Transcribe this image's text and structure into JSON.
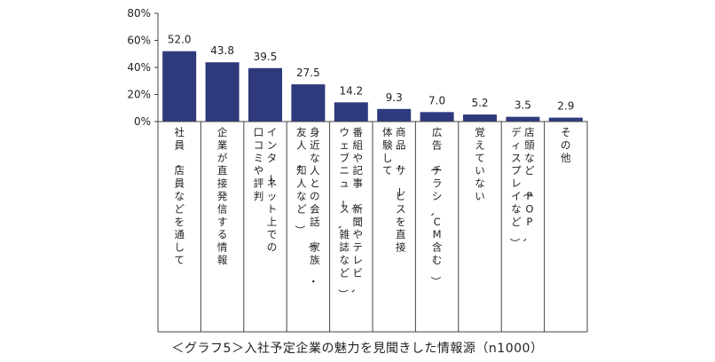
{
  "caption": "＜グラフ5＞入社予定企業の魅力を見聞きした情報源（n1000）",
  "colors": {
    "bar": "#2e3a7c",
    "axis": "#444444",
    "text": "#222222"
  },
  "chart_data": {
    "type": "bar",
    "title": "＜グラフ5＞入社予定企業の魅力を見聞きした情報源（n1000）",
    "ylim": [
      0,
      80
    ],
    "yticks": [
      0,
      20,
      40,
      60,
      80
    ],
    "ytick_labels": [
      "0%",
      "20%",
      "40%",
      "60%",
      "80%"
    ],
    "grid": false,
    "categories": [
      "社員・店員などを通して",
      "企業が直接発信する情報",
      "インターネット上での口コミや評判",
      "身近な人との会話（家族・友人・知人など）",
      "番組や記事（新聞やテレビ、ウェブニュース、雑誌など）",
      "商品・サービスを直接体験して",
      "広告（チラシ、CM含む）",
      "覚えていない",
      "店頭など（POP、ディスプレイなど）",
      "その他"
    ],
    "category_columns": [
      [
        "社員・店員などを通して"
      ],
      [
        "企業が直接発信する情報"
      ],
      [
        "インターネット上での",
        "口コミや評判"
      ],
      [
        "身近な人との会話（家族・",
        "友人・知人など）"
      ],
      [
        "番組や記事（新聞やテレビ、",
        "ウェブニュース、雑誌など）"
      ],
      [
        "商品・サービスを直接",
        "体験して"
      ],
      [
        "広告（チラシ、CM含む）"
      ],
      [
        "覚えていない"
      ],
      [
        "店頭など（POP、",
        "ディスプレイなど）"
      ],
      [
        "その他"
      ]
    ],
    "values": [
      52.0,
      43.8,
      39.5,
      27.5,
      14.2,
      9.3,
      7.0,
      5.2,
      3.5,
      2.9
    ],
    "value_labels": [
      "52.0",
      "43.8",
      "39.5",
      "27.5",
      "14.2",
      "9.3",
      "7.0",
      "5.2",
      "3.5",
      "2.9"
    ]
  }
}
